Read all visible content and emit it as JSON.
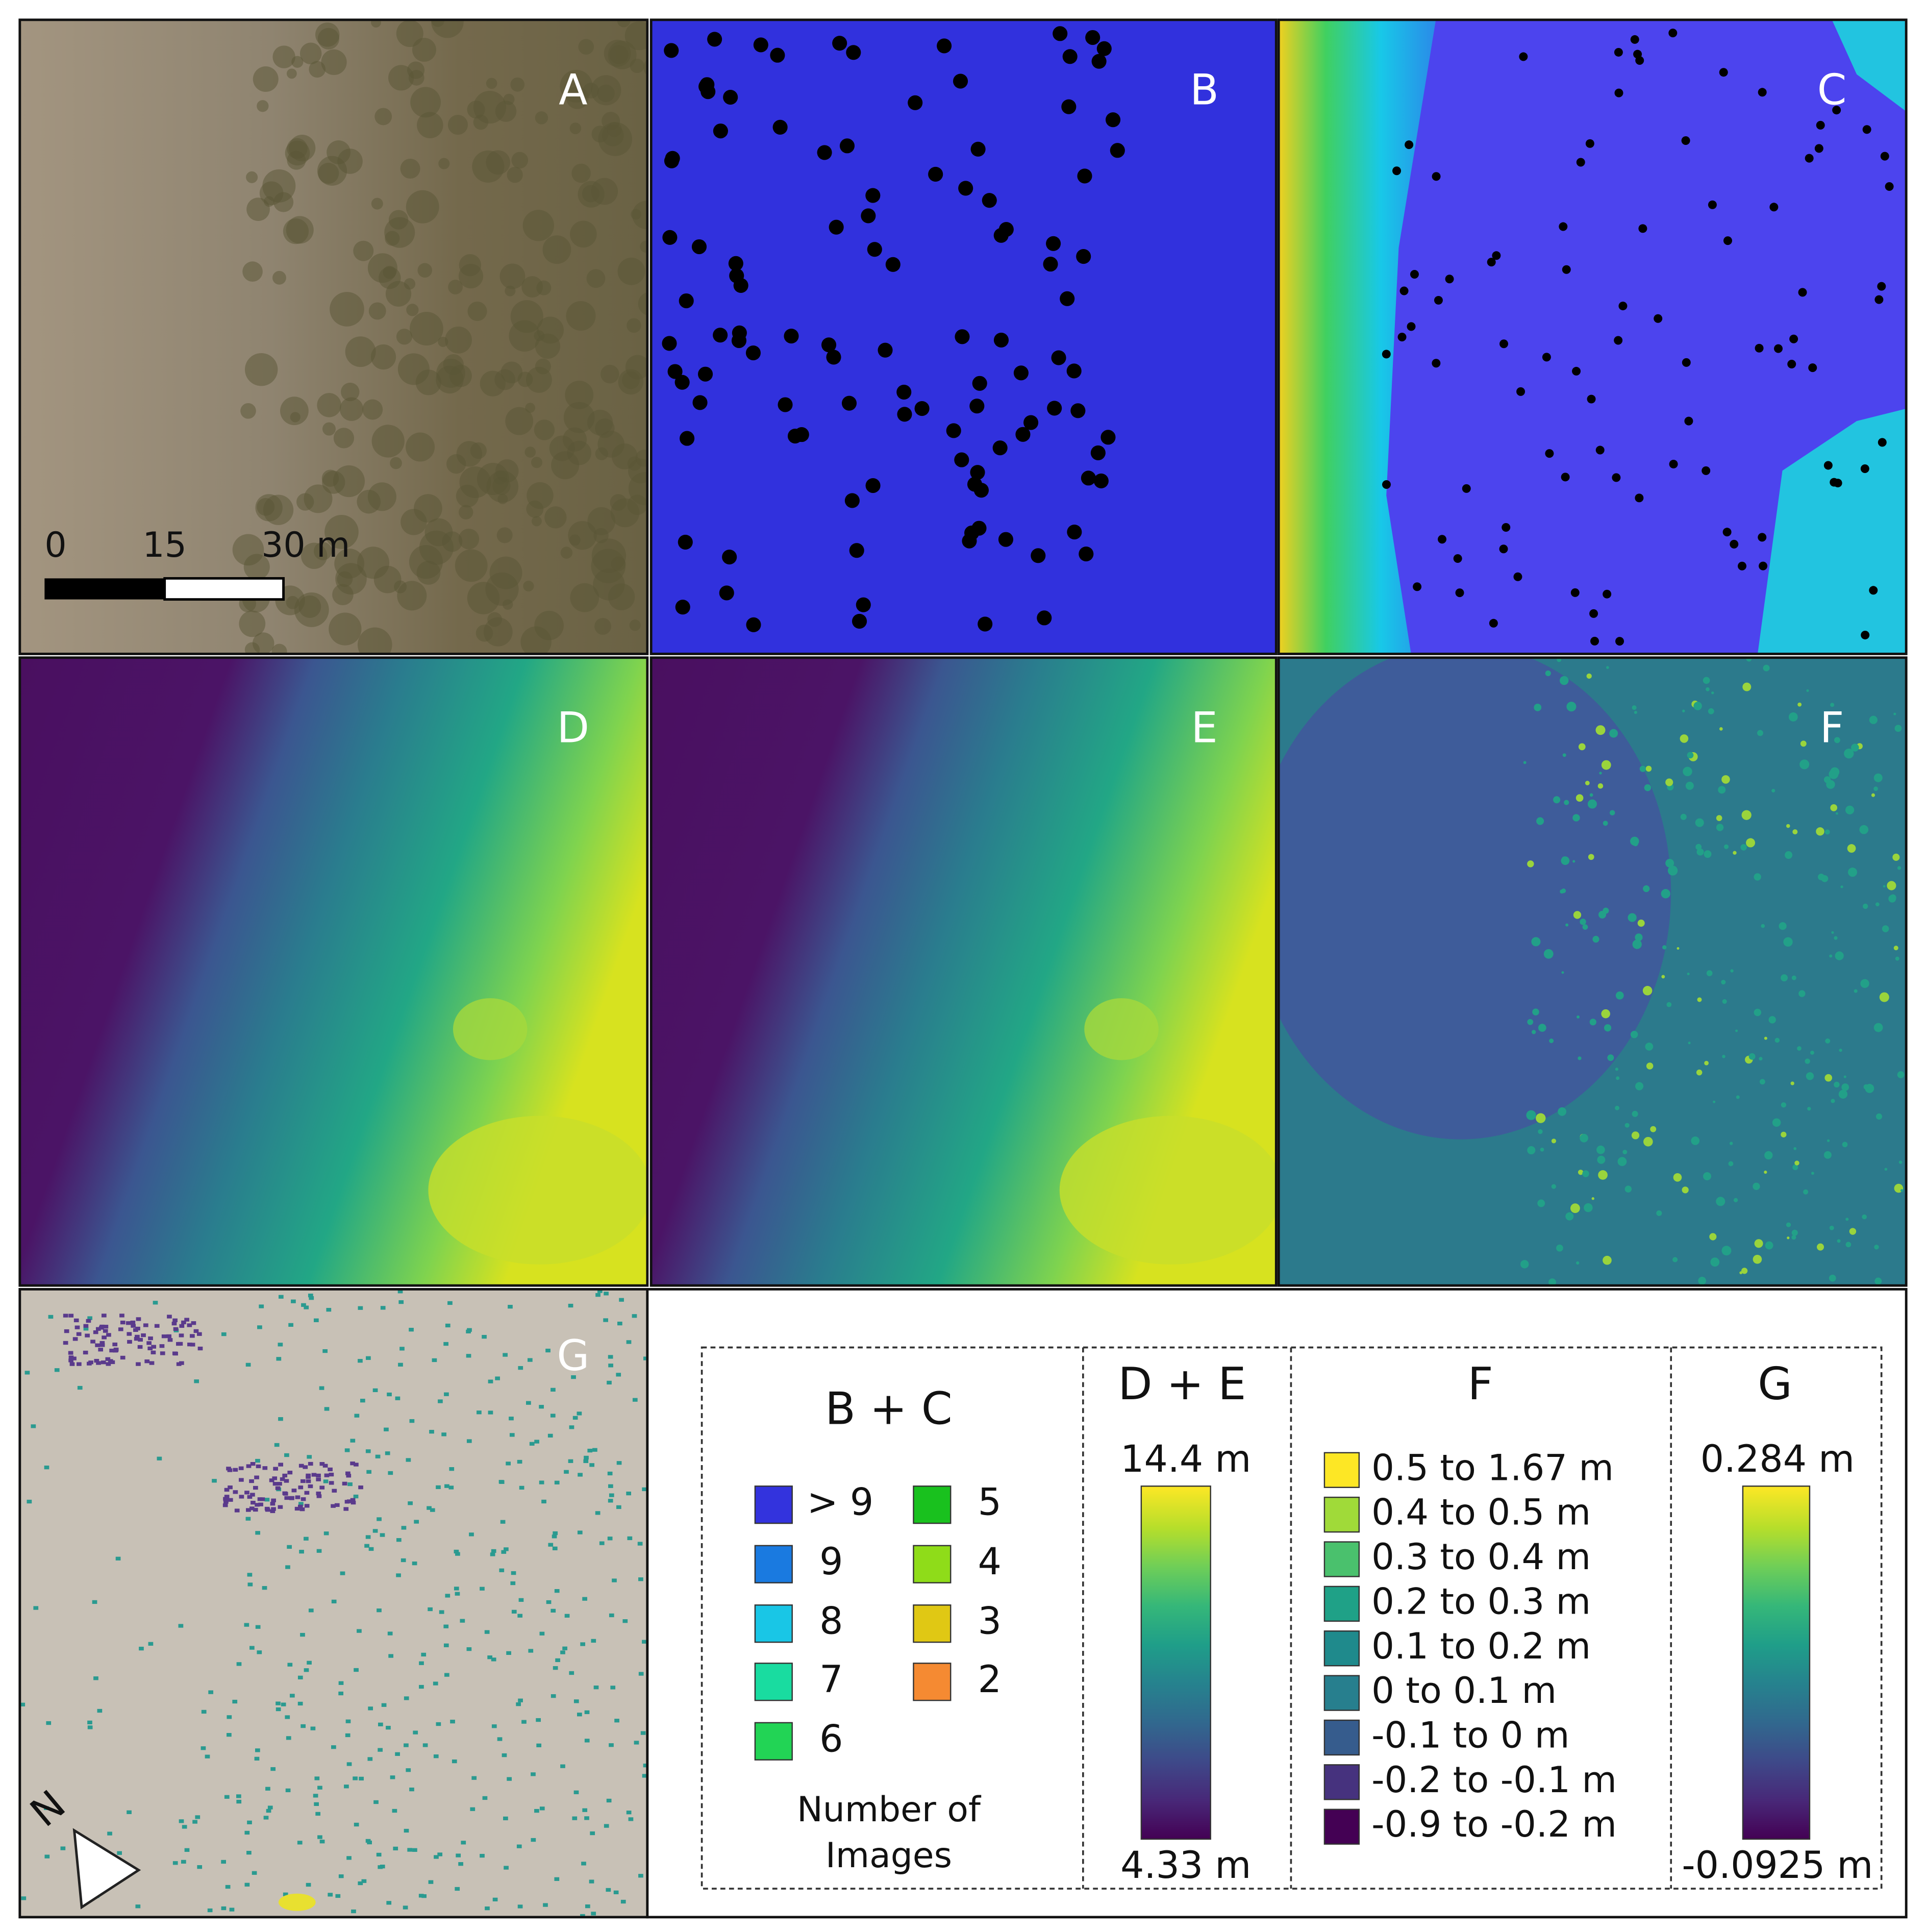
{
  "panel_labels": [
    "A",
    "B",
    "C",
    "D",
    "E",
    "F",
    "G"
  ],
  "scale_bar": {
    "labels": [
      "0",
      "15",
      "30 m"
    ]
  },
  "north_arrow": "N",
  "legend": {
    "bc": {
      "title": "B + C",
      "items": [
        {
          "label": "> 9",
          "color": "#3333dd"
        },
        {
          "label": "9",
          "color": "#1a7ae0"
        },
        {
          "label": "8",
          "color": "#19c6e6"
        },
        {
          "label": "7",
          "color": "#19dca0"
        },
        {
          "label": "6",
          "color": "#22d455"
        },
        {
          "label": "5",
          "color": "#19c11e"
        },
        {
          "label": "4",
          "color": "#8fdc19"
        },
        {
          "label": "3",
          "color": "#e0c814"
        },
        {
          "label": "2",
          "color": "#f58a32"
        }
      ],
      "caption": [
        "Number of",
        "Images"
      ]
    },
    "de": {
      "title": "D + E",
      "max_label": "14.4 m",
      "min_label": "4.33 m"
    },
    "f": {
      "title": "F",
      "items": [
        {
          "label": "0.5 to 1.67 m",
          "color": "#fde725"
        },
        {
          "label": "0.4 to 0.5 m",
          "color": "#a0da39"
        },
        {
          "label": "0.3 to 0.4 m",
          "color": "#4ac16d"
        },
        {
          "label": "0.2 to 0.3 m",
          "color": "#1fa187"
        },
        {
          "label": "0.1 to 0.2 m",
          "color": "#1f8a8c"
        },
        {
          "label": "0 to 0.1 m",
          "color": "#277f8e"
        },
        {
          "label": "-0.1 to 0 m",
          "color": "#365c8d"
        },
        {
          "label": "-0.2 to -0.1 m",
          "color": "#46327e"
        },
        {
          "label": "-0.9 to -0.2 m",
          "color": "#440154"
        }
      ]
    },
    "g": {
      "title": "G",
      "max_label": "0.284 m",
      "min_label": "-0.0925 m"
    }
  }
}
